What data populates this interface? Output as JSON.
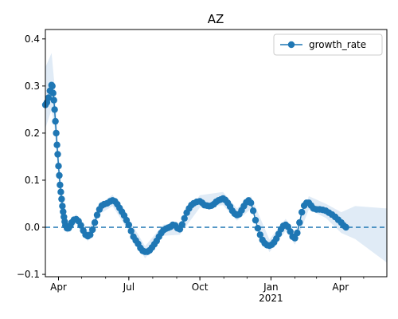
{
  "chart_data": {
    "type": "line",
    "title": "AZ",
    "xlabel": "",
    "ylabel": "",
    "x_start": "2020-03-15",
    "x_end": "2021-05-31",
    "ylim": [
      -0.105,
      0.42
    ],
    "y_ticks": [
      -0.1,
      0.0,
      0.1,
      0.2,
      0.3,
      0.4
    ],
    "y_tick_labels": [
      "−0.1",
      "0.0",
      "0.1",
      "0.2",
      "0.3",
      "0.4"
    ],
    "x_ticks": [
      {
        "date": "2020-04-01",
        "label": "Apr",
        "sublabel": ""
      },
      {
        "date": "2020-07-01",
        "label": "Jul",
        "sublabel": ""
      },
      {
        "date": "2020-10-01",
        "label": "Oct",
        "sublabel": ""
      },
      {
        "date": "2021-01-01",
        "label": "Jan",
        "sublabel": "2021"
      },
      {
        "date": "2021-04-01",
        "label": "Apr",
        "sublabel": ""
      }
    ],
    "reference_line": {
      "y": 0.0,
      "style": "dashed"
    },
    "legend": {
      "placement": "upper right",
      "entries": [
        "growth_rate"
      ]
    },
    "colors": {
      "line": "#1f77b4",
      "band": "#c6dbef"
    },
    "series": [
      {
        "name": "growth_rate",
        "points": [
          [
            "2020-03-15",
            0.26
          ],
          [
            "2020-03-17",
            0.265
          ],
          [
            "2020-03-19",
            0.275
          ],
          [
            "2020-03-21",
            0.29
          ],
          [
            "2020-03-23",
            0.302
          ],
          [
            "2020-03-24",
            0.3
          ],
          [
            "2020-03-25",
            0.285
          ],
          [
            "2020-03-26",
            0.27
          ],
          [
            "2020-03-27",
            0.25
          ],
          [
            "2020-03-28",
            0.225
          ],
          [
            "2020-03-29",
            0.2
          ],
          [
            "2020-03-30",
            0.175
          ],
          [
            "2020-03-31",
            0.155
          ],
          [
            "2020-04-01",
            0.13
          ],
          [
            "2020-04-02",
            0.11
          ],
          [
            "2020-04-03",
            0.09
          ],
          [
            "2020-04-04",
            0.075
          ],
          [
            "2020-04-05",
            0.06
          ],
          [
            "2020-04-06",
            0.045
          ],
          [
            "2020-04-07",
            0.033
          ],
          [
            "2020-04-08",
            0.022
          ],
          [
            "2020-04-09",
            0.012
          ],
          [
            "2020-04-10",
            0.004
          ],
          [
            "2020-04-12",
            -0.002
          ],
          [
            "2020-04-14",
            -0.002
          ],
          [
            "2020-04-16",
            0.003
          ],
          [
            "2020-04-18",
            0.01
          ],
          [
            "2020-04-21",
            0.016
          ],
          [
            "2020-04-24",
            0.017
          ],
          [
            "2020-04-27",
            0.013
          ],
          [
            "2020-04-30",
            0.004
          ],
          [
            "2020-05-03",
            -0.007
          ],
          [
            "2020-05-06",
            -0.016
          ],
          [
            "2020-05-09",
            -0.019
          ],
          [
            "2020-05-12",
            -0.016
          ],
          [
            "2020-05-15",
            -0.005
          ],
          [
            "2020-05-18",
            0.01
          ],
          [
            "2020-05-21",
            0.026
          ],
          [
            "2020-05-24",
            0.038
          ],
          [
            "2020-05-27",
            0.046
          ],
          [
            "2020-05-30",
            0.049
          ],
          [
            "2020-06-03",
            0.051
          ],
          [
            "2020-06-07",
            0.055
          ],
          [
            "2020-06-10",
            0.057
          ],
          [
            "2020-06-13",
            0.055
          ],
          [
            "2020-06-16",
            0.049
          ],
          [
            "2020-06-19",
            0.041
          ],
          [
            "2020-06-22",
            0.033
          ],
          [
            "2020-06-25",
            0.025
          ],
          [
            "2020-06-28",
            0.015
          ],
          [
            "2020-07-01",
            0.005
          ],
          [
            "2020-07-04",
            -0.008
          ],
          [
            "2020-07-07",
            -0.02
          ],
          [
            "2020-07-10",
            -0.028
          ],
          [
            "2020-07-13",
            -0.035
          ],
          [
            "2020-07-16",
            -0.044
          ],
          [
            "2020-07-19",
            -0.05
          ],
          [
            "2020-07-22",
            -0.052
          ],
          [
            "2020-07-25",
            -0.052
          ],
          [
            "2020-07-28",
            -0.049
          ],
          [
            "2020-07-31",
            -0.043
          ],
          [
            "2020-08-03",
            -0.036
          ],
          [
            "2020-08-06",
            -0.029
          ],
          [
            "2020-08-09",
            -0.02
          ],
          [
            "2020-08-12",
            -0.012
          ],
          [
            "2020-08-15",
            -0.006
          ],
          [
            "2020-08-18",
            -0.003
          ],
          [
            "2020-08-21",
            -0.001
          ],
          [
            "2020-08-24",
            0.001
          ],
          [
            "2020-08-27",
            0.005
          ],
          [
            "2020-08-30",
            0.004
          ],
          [
            "2020-09-02",
            -0.002
          ],
          [
            "2020-09-05",
            -0.004
          ],
          [
            "2020-09-08",
            0.006
          ],
          [
            "2020-09-11",
            0.019
          ],
          [
            "2020-09-14",
            0.031
          ],
          [
            "2020-09-17",
            0.04
          ],
          [
            "2020-09-20",
            0.047
          ],
          [
            "2020-09-23",
            0.051
          ],
          [
            "2020-09-27",
            0.054
          ],
          [
            "2020-10-01",
            0.055
          ],
          [
            "2020-10-04",
            0.052
          ],
          [
            "2020-10-07",
            0.047
          ],
          [
            "2020-10-10",
            0.046
          ],
          [
            "2020-10-13",
            0.045
          ],
          [
            "2020-10-16",
            0.046
          ],
          [
            "2020-10-19",
            0.049
          ],
          [
            "2020-10-22",
            0.054
          ],
          [
            "2020-10-25",
            0.057
          ],
          [
            "2020-10-28",
            0.059
          ],
          [
            "2020-10-31",
            0.061
          ],
          [
            "2020-11-03",
            0.058
          ],
          [
            "2020-11-06",
            0.052
          ],
          [
            "2020-11-09",
            0.044
          ],
          [
            "2020-11-12",
            0.035
          ],
          [
            "2020-11-15",
            0.029
          ],
          [
            "2020-11-18",
            0.026
          ],
          [
            "2020-11-21",
            0.028
          ],
          [
            "2020-11-24",
            0.036
          ],
          [
            "2020-11-27",
            0.045
          ],
          [
            "2020-11-30",
            0.053
          ],
          [
            "2020-12-03",
            0.057
          ],
          [
            "2020-12-06",
            0.052
          ],
          [
            "2020-12-09",
            0.035
          ],
          [
            "2020-12-12",
            0.015
          ],
          [
            "2020-12-15",
            -0.002
          ],
          [
            "2020-12-18",
            -0.016
          ],
          [
            "2020-12-21",
            -0.027
          ],
          [
            "2020-12-24",
            -0.034
          ],
          [
            "2020-12-27",
            -0.038
          ],
          [
            "2020-12-30",
            -0.039
          ],
          [
            "2021-01-02",
            -0.037
          ],
          [
            "2021-01-05",
            -0.032
          ],
          [
            "2021-01-08",
            -0.024
          ],
          [
            "2021-01-11",
            -0.014
          ],
          [
            "2021-01-14",
            -0.004
          ],
          [
            "2021-01-17",
            0.003
          ],
          [
            "2021-01-20",
            0.005
          ],
          [
            "2021-01-23",
            0.001
          ],
          [
            "2021-01-26",
            -0.009
          ],
          [
            "2021-01-29",
            -0.02
          ],
          [
            "2021-02-01",
            -0.023
          ],
          [
            "2021-02-04",
            -0.012
          ],
          [
            "2021-02-07",
            0.01
          ],
          [
            "2021-02-10",
            0.032
          ],
          [
            "2021-02-13",
            0.046
          ],
          [
            "2021-02-16",
            0.052
          ],
          [
            "2021-02-19",
            0.052
          ],
          [
            "2021-02-22",
            0.046
          ],
          [
            "2021-02-25",
            0.04
          ],
          [
            "2021-03-01",
            0.038
          ],
          [
            "2021-03-05",
            0.038
          ],
          [
            "2021-03-09",
            0.037
          ],
          [
            "2021-03-13",
            0.035
          ],
          [
            "2021-03-17",
            0.031
          ],
          [
            "2021-03-21",
            0.027
          ],
          [
            "2021-03-25",
            0.022
          ],
          [
            "2021-03-29",
            0.016
          ],
          [
            "2021-04-02",
            0.01
          ],
          [
            "2021-04-05",
            0.004
          ],
          [
            "2021-04-08",
            0.0
          ]
        ],
        "confidence_band": [
          [
            "2020-03-15",
            0.21,
            0.34
          ],
          [
            "2020-03-23",
            0.25,
            0.37
          ],
          [
            "2020-03-27",
            0.21,
            0.3
          ],
          [
            "2020-04-01",
            0.1,
            0.16
          ],
          [
            "2020-04-06",
            0.025,
            0.065
          ],
          [
            "2020-04-12",
            -0.012,
            0.01
          ],
          [
            "2020-04-24",
            0.008,
            0.028
          ],
          [
            "2020-05-09",
            -0.03,
            -0.008
          ],
          [
            "2020-05-24",
            0.028,
            0.048
          ],
          [
            "2020-06-10",
            0.045,
            0.069
          ],
          [
            "2020-07-01",
            -0.008,
            0.018
          ],
          [
            "2020-07-22",
            -0.066,
            -0.04
          ],
          [
            "2020-08-15",
            -0.018,
            0.006
          ],
          [
            "2020-09-05",
            -0.016,
            0.008
          ],
          [
            "2020-10-01",
            0.042,
            0.068
          ],
          [
            "2020-10-31",
            0.047,
            0.075
          ],
          [
            "2020-11-18",
            0.014,
            0.04
          ],
          [
            "2020-12-06",
            0.039,
            0.066
          ],
          [
            "2020-12-30",
            -0.053,
            -0.026
          ],
          [
            "2021-01-20",
            -0.008,
            0.018
          ],
          [
            "2021-02-01",
            -0.037,
            -0.01
          ],
          [
            "2021-02-19",
            0.038,
            0.066
          ],
          [
            "2021-03-13",
            0.02,
            0.05
          ],
          [
            "2021-04-02",
            -0.012,
            0.032
          ],
          [
            "2021-04-20",
            -0.025,
            0.045
          ],
          [
            "2021-05-31",
            -0.075,
            0.04
          ]
        ]
      }
    ]
  }
}
